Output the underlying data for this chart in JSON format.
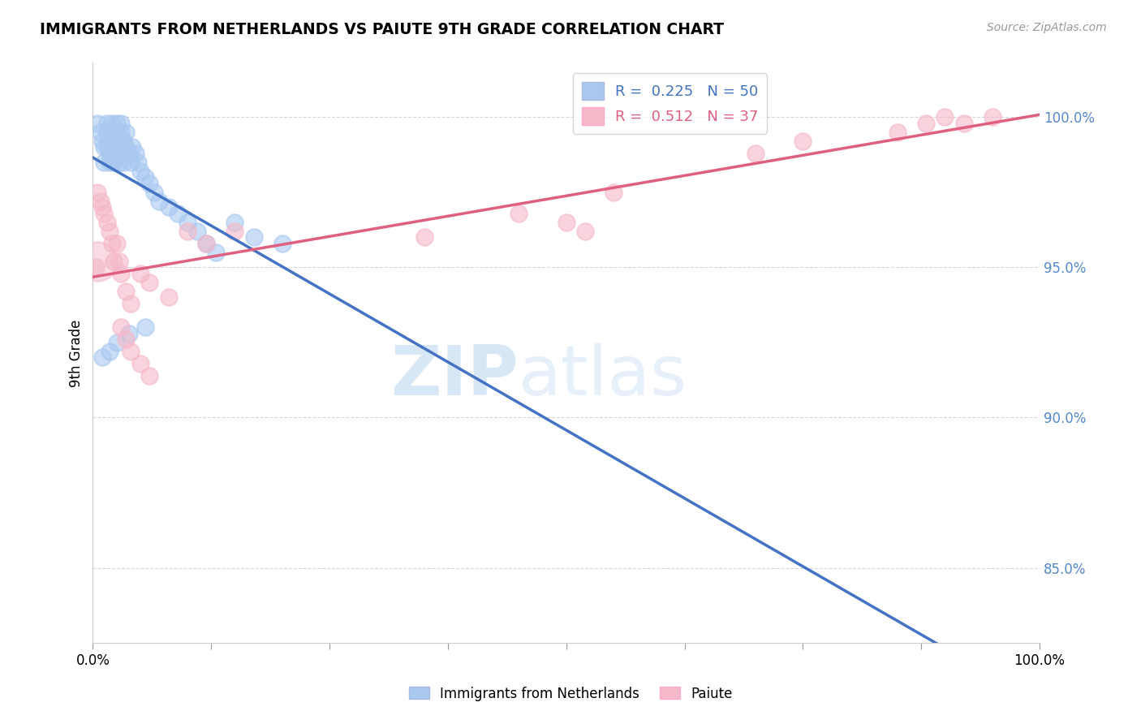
{
  "title": "IMMIGRANTS FROM NETHERLANDS VS PAIUTE 9TH GRADE CORRELATION CHART",
  "source_text": "Source: ZipAtlas.com",
  "ylabel": "9th Grade",
  "xlim": [
    0.0,
    1.0
  ],
  "ylim": [
    0.825,
    1.018
  ],
  "yticks": [
    0.85,
    0.9,
    0.95,
    1.0
  ],
  "ytick_labels": [
    "85.0%",
    "90.0%",
    "95.0%",
    "100.0%"
  ],
  "legend_footer_blue": "Immigrants from Netherlands",
  "legend_footer_pink": "Paiute",
  "blue_color": "#A8C8F0",
  "pink_color": "#F5B8C8",
  "blue_line_color": "#4472C4",
  "pink_line_color": "#E06080",
  "watermark_zip_color": "#C8DFF5",
  "watermark_atlas_color": "#C0D8F0",
  "blue_R": 0.225,
  "pink_R": 0.512,
  "blue_N": 50,
  "pink_N": 37,
  "figsize": [
    14.06,
    8.92
  ],
  "dpi": 100,
  "blue_x": [
    0.005,
    0.008,
    0.01,
    0.012,
    0.012,
    0.015,
    0.015,
    0.015,
    0.018,
    0.018,
    0.02,
    0.02,
    0.02,
    0.022,
    0.022,
    0.025,
    0.025,
    0.025,
    0.028,
    0.028,
    0.03,
    0.03,
    0.032,
    0.032,
    0.035,
    0.035,
    0.038,
    0.04,
    0.042,
    0.045,
    0.048,
    0.05,
    0.055,
    0.06,
    0.065,
    0.07,
    0.08,
    0.09,
    0.1,
    0.11,
    0.12,
    0.13,
    0.15,
    0.17,
    0.2,
    0.055,
    0.038,
    0.025,
    0.018,
    0.01
  ],
  "blue_y": [
    0.998,
    0.995,
    0.992,
    0.99,
    0.985,
    0.998,
    0.995,
    0.99,
    0.988,
    0.985,
    0.998,
    0.995,
    0.992,
    0.99,
    0.985,
    0.998,
    0.995,
    0.99,
    0.988,
    0.985,
    0.998,
    0.995,
    0.992,
    0.985,
    0.995,
    0.99,
    0.988,
    0.985,
    0.99,
    0.988,
    0.985,
    0.982,
    0.98,
    0.978,
    0.975,
    0.972,
    0.97,
    0.968,
    0.965,
    0.962,
    0.958,
    0.955,
    0.965,
    0.96,
    0.958,
    0.93,
    0.928,
    0.925,
    0.922,
    0.92
  ],
  "pink_x": [
    0.003,
    0.005,
    0.008,
    0.01,
    0.012,
    0.015,
    0.018,
    0.02,
    0.022,
    0.025,
    0.028,
    0.03,
    0.035,
    0.04,
    0.05,
    0.06,
    0.08,
    0.1,
    0.12,
    0.15,
    0.03,
    0.035,
    0.04,
    0.05,
    0.06,
    0.35,
    0.45,
    0.5,
    0.52,
    0.55,
    0.7,
    0.75,
    0.85,
    0.88,
    0.9,
    0.92,
    0.95
  ],
  "pink_y": [
    0.95,
    0.975,
    0.972,
    0.97,
    0.968,
    0.965,
    0.962,
    0.958,
    0.952,
    0.958,
    0.952,
    0.948,
    0.942,
    0.938,
    0.948,
    0.945,
    0.94,
    0.962,
    0.958,
    0.962,
    0.93,
    0.926,
    0.922,
    0.918,
    0.914,
    0.96,
    0.968,
    0.965,
    0.962,
    0.975,
    0.988,
    0.992,
    0.995,
    0.998,
    1.0,
    0.998,
    1.0
  ],
  "pink_large_x": [
    0.005
  ],
  "pink_large_y": [
    0.952
  ],
  "pink_large_size": 1200
}
